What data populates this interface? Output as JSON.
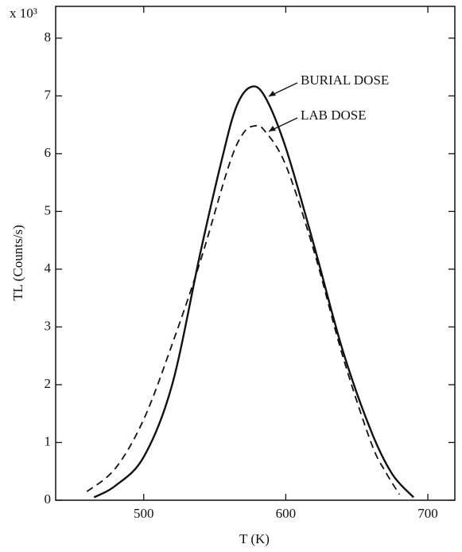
{
  "chart_data": {
    "type": "line",
    "x_label": "T (K)",
    "y_label": "TL (Counts/s)",
    "y_multiplier": "x 10³",
    "xlim": [
      438,
      719
    ],
    "xticks": [
      500,
      600,
      700
    ],
    "ylim": [
      0,
      8.55
    ],
    "yticks": [
      0,
      1,
      2,
      3,
      4,
      5,
      6,
      7,
      8
    ],
    "series": [
      {
        "name": "BURIAL DOSE",
        "color": "#111111",
        "dash": false,
        "x": [
          465,
          480,
          500,
          520,
          540,
          555,
          565,
          575,
          585,
          600,
          620,
          640,
          660,
          675,
          690
        ],
        "values": [
          0.05,
          0.25,
          0.75,
          2.0,
          4.3,
          5.9,
          6.8,
          7.15,
          7.0,
          6.1,
          4.4,
          2.6,
          1.2,
          0.45,
          0.05
        ]
      },
      {
        "name": "LAB DOSE",
        "color": "#111111",
        "dash": true,
        "x": [
          460,
          480,
          500,
          520,
          540,
          560,
          570,
          578,
          585,
          600,
          620,
          640,
          660,
          670,
          680
        ],
        "values": [
          0.15,
          0.55,
          1.4,
          2.7,
          4.15,
          5.8,
          6.35,
          6.48,
          6.4,
          5.8,
          4.3,
          2.5,
          1.0,
          0.5,
          0.1
        ]
      }
    ]
  }
}
